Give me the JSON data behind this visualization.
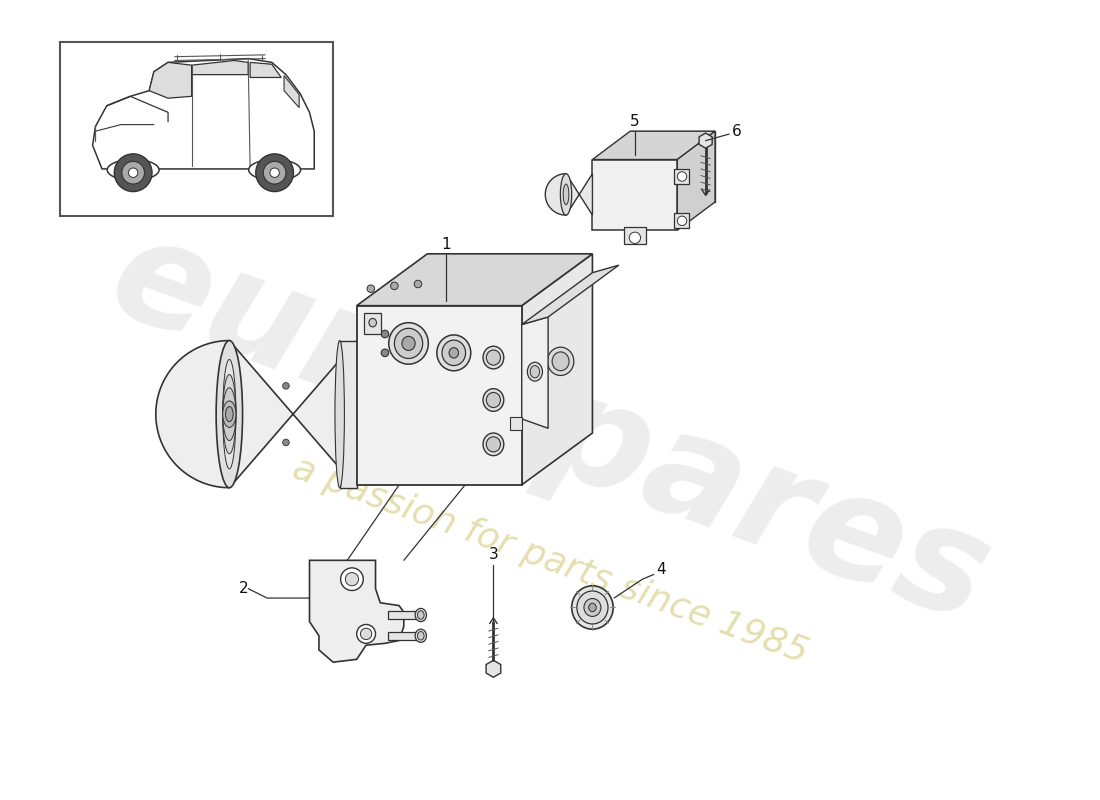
{
  "bg_color": "#ffffff",
  "line_color": "#333333",
  "lw": 1.2,
  "watermark_text1": "eurospares",
  "watermark_text2": "a passion for parts since 1985",
  "fig_width": 11.0,
  "fig_height": 8.0,
  "dpi": 100
}
